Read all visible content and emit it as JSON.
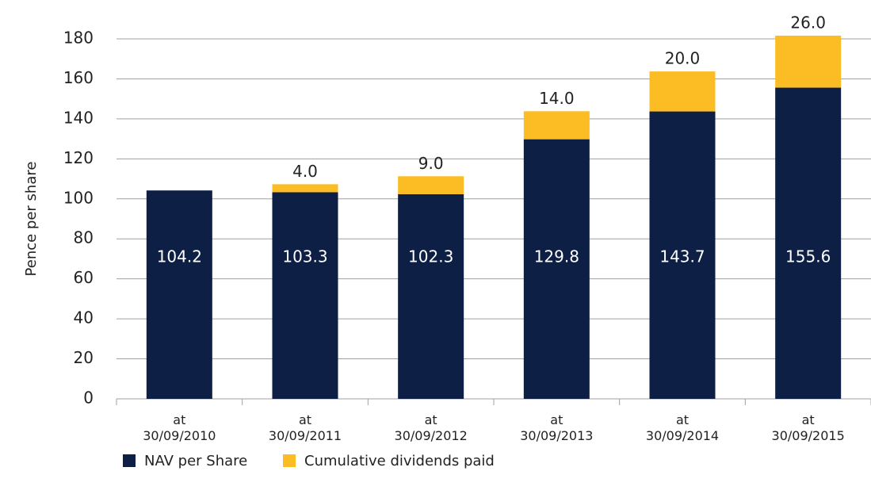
{
  "chart_data": {
    "type": "stacked_bar",
    "y_label": "Pence per share",
    "categories": [
      "at 30/09/2010",
      "at 30/09/2011",
      "at 30/09/2012",
      "at 30/09/2013",
      "at 30/09/2014",
      "at 30/09/2015"
    ],
    "series": [
      {
        "name": "NAV per Share",
        "color": "#0e1f45",
        "values": [
          104.2,
          103.3,
          102.3,
          129.8,
          143.7,
          155.6
        ]
      },
      {
        "name": "Cumulative dividends paid",
        "color": "#fbbc24",
        "values": [
          null,
          4,
          9,
          14,
          20,
          26
        ],
        "value_labels": [
          null,
          "4.0",
          "9.0",
          "14.0",
          "20.0",
          "26.0"
        ]
      }
    ],
    "ylim": [
      0,
      180
    ],
    "yticks": [
      0,
      20,
      40,
      60,
      80,
      100,
      120,
      140,
      160,
      180
    ],
    "grid": true,
    "legend": "bottom-left"
  }
}
